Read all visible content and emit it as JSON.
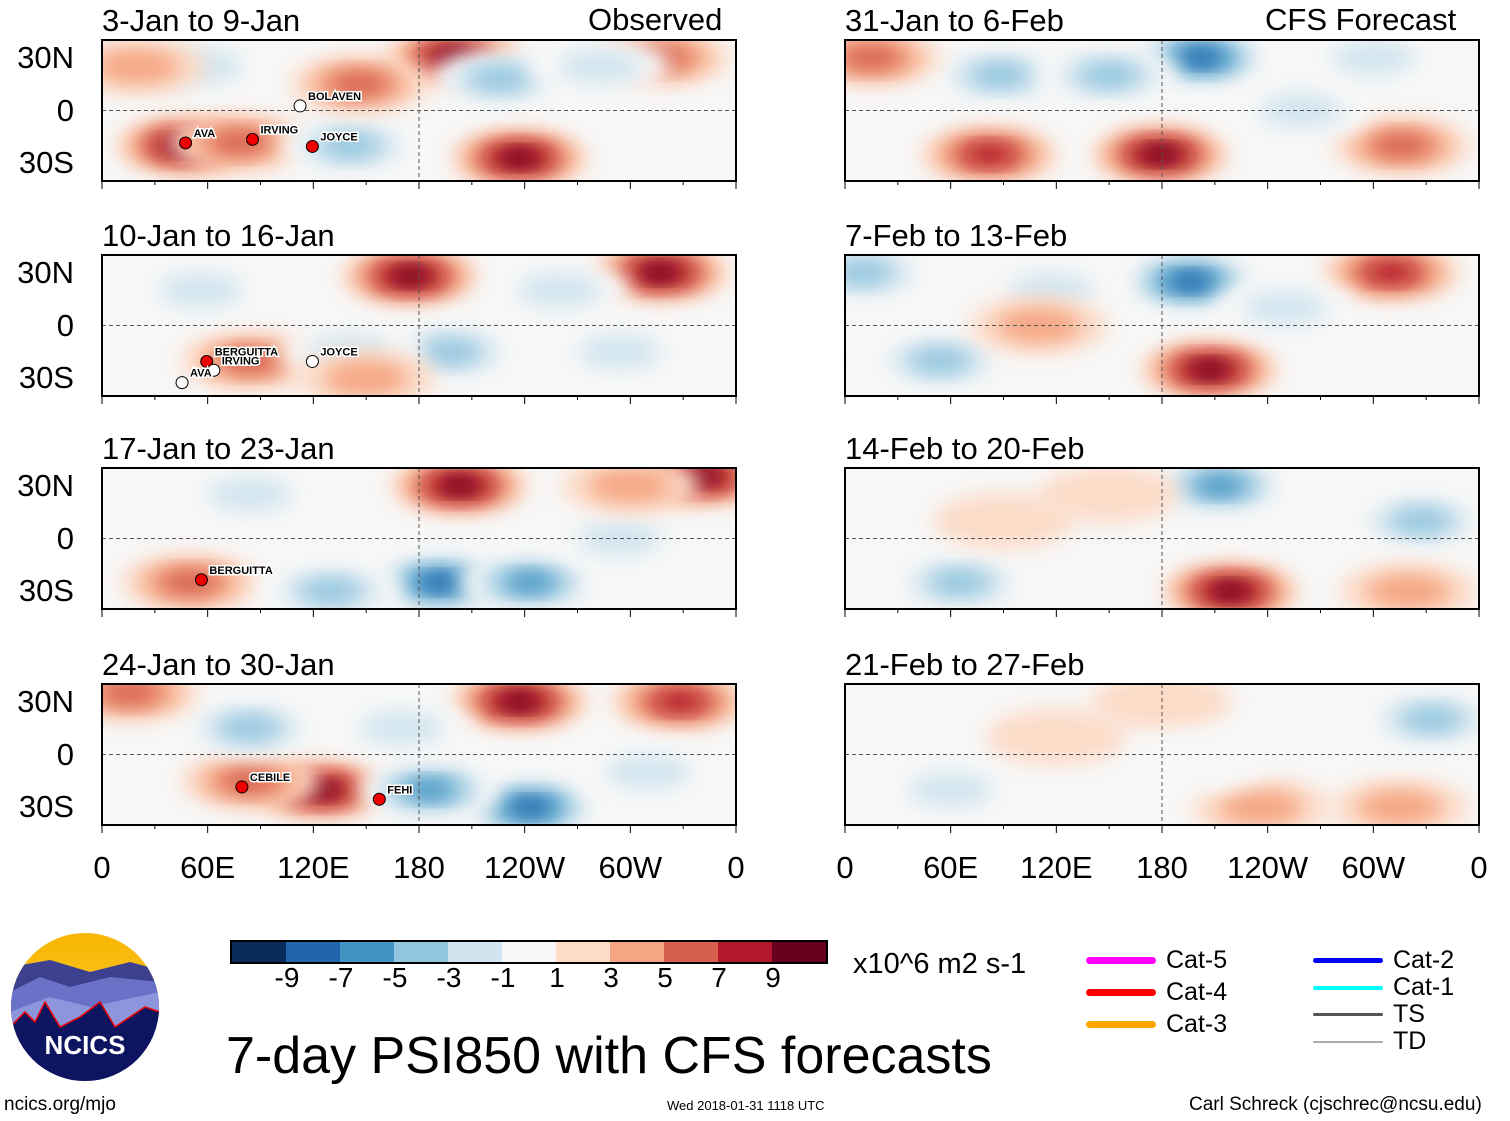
{
  "colorbar": {
    "colors": [
      "#0b2b5c",
      "#2166ac",
      "#4393c3",
      "#92c5de",
      "#d1e5f0",
      "#f7f7f7",
      "#fddbc7",
      "#f4a582",
      "#d6604d",
      "#b2182b",
      "#67001f"
    ],
    "ticks": [
      "-9",
      "-7",
      "-5",
      "-3",
      "-1",
      "1",
      "3",
      "5",
      "7",
      "9"
    ],
    "units": "x10^6 m2 s-1"
  },
  "y_labels": [
    "30N",
    "0",
    "30S"
  ],
  "x_labels": [
    "0",
    "60E",
    "120E",
    "180",
    "120W",
    "60W",
    "0"
  ],
  "column_labels": {
    "left": "Observed",
    "right": "CFS Forecast"
  },
  "panels": [
    {
      "title": "3-Jan to 9-Jan",
      "blobs": [
        [
          200,
          30,
          9
        ],
        [
          317,
          30,
          5
        ],
        [
          47,
          -20,
          9
        ],
        [
          78,
          -18,
          5
        ],
        [
          237,
          -27,
          9
        ],
        [
          226,
          18,
          -5
        ],
        [
          283,
          25,
          -3
        ],
        [
          141,
          -20,
          -5
        ],
        [
          56,
          25,
          -3
        ],
        [
          146,
          15,
          5
        ],
        [
          20,
          25,
          3
        ]
      ],
      "storms": [
        {
          "name": "AVA",
          "lon": 52,
          "lat": -15,
          "cat": "Cat-4"
        },
        {
          "name": "IRVING",
          "lon": 90,
          "lat": -13,
          "cat": "Cat-2"
        },
        {
          "name": "BOLAVEN",
          "lon": 117,
          "lat": 6,
          "cat": "TD"
        },
        {
          "name": "JOYCE",
          "lon": 124,
          "lat": -17,
          "cat": "Cat-4"
        }
      ]
    },
    {
      "title": "10-Jan to 16-Jan",
      "blobs": [
        [
          175,
          28,
          9
        ],
        [
          317,
          30,
          9
        ],
        [
          260,
          20,
          -3
        ],
        [
          198,
          -15,
          -5
        ],
        [
          84,
          -20,
          5
        ],
        [
          141,
          -15,
          -3
        ],
        [
          56,
          20,
          -3
        ],
        [
          294,
          -15,
          -3
        ],
        [
          150,
          -30,
          3
        ]
      ],
      "storms": [
        {
          "name": "BERGUITTA",
          "lon": 64,
          "lat": -17,
          "cat": "Cat-4"
        },
        {
          "name": "IRVING",
          "lon": 68,
          "lat": -22,
          "cat": "TD"
        },
        {
          "name": "AVA",
          "lon": 50,
          "lat": -29,
          "cat": "TD"
        },
        {
          "name": "JOYCE",
          "lon": 124,
          "lat": -17,
          "cat": "TD"
        }
      ]
    },
    {
      "title": "17-Jan to 23-Jan",
      "blobs": [
        [
          203,
          30,
          9
        ],
        [
          340,
          35,
          9
        ],
        [
          192,
          -25,
          -9
        ],
        [
          243,
          -25,
          -7
        ],
        [
          50,
          -25,
          5
        ],
        [
          84,
          25,
          -3
        ],
        [
          294,
          0,
          -3
        ],
        [
          130,
          -30,
          -5
        ],
        [
          300,
          30,
          3
        ]
      ],
      "storms": [
        {
          "name": "BERGUITTA",
          "lon": 61,
          "lat": -20,
          "cat": "Cat-1"
        }
      ]
    },
    {
      "title": "24-Jan to 30-Jan",
      "blobs": [
        [
          237,
          30,
          9
        ],
        [
          328,
          30,
          7
        ],
        [
          124,
          -20,
          9
        ],
        [
          84,
          -15,
          5
        ],
        [
          243,
          -30,
          -9
        ],
        [
          186,
          -20,
          -7
        ],
        [
          84,
          15,
          -5
        ],
        [
          310,
          -10,
          -3
        ],
        [
          16,
          35,
          5
        ],
        [
          170,
          15,
          -3
        ]
      ],
      "storms": [
        {
          "name": "CEBILE",
          "lon": 84,
          "lat": -15,
          "cat": "Cat-4"
        },
        {
          "name": "FEHI",
          "lon": 162,
          "lat": -22,
          "cat": "Cat-4"
        }
      ]
    },
    {
      "title": "31-Jan to 6-Feb",
      "blobs": [
        [
          202,
          30,
          -9
        ],
        [
          88,
          20,
          -5
        ],
        [
          179,
          -25,
          9
        ],
        [
          82,
          -25,
          7
        ],
        [
          316,
          -20,
          5
        ],
        [
          15,
          30,
          5
        ],
        [
          259,
          0,
          -3
        ],
        [
          300,
          30,
          -3
        ],
        [
          150,
          20,
          -5
        ]
      ],
      "storms": []
    },
    {
      "title": "7-Feb to 13-Feb",
      "blobs": [
        [
          196,
          25,
          -9
        ],
        [
          310,
          30,
          7
        ],
        [
          207,
          -25,
          9
        ],
        [
          54,
          -20,
          -5
        ],
        [
          117,
          20,
          -3
        ],
        [
          10,
          30,
          -5
        ],
        [
          250,
          10,
          -3
        ],
        [
          110,
          0,
          3
        ]
      ],
      "storms": []
    },
    {
      "title": "14-Feb to 20-Feb",
      "blobs": [
        [
          213,
          30,
          -7
        ],
        [
          327,
          10,
          -5
        ],
        [
          219,
          -30,
          9
        ],
        [
          65,
          -25,
          -5
        ],
        [
          90,
          10,
          1
        ],
        [
          150,
          25,
          1
        ],
        [
          320,
          -30,
          3
        ]
      ],
      "storms": []
    },
    {
      "title": "21-Feb to 27-Feb",
      "blobs": [
        [
          333,
          20,
          -5
        ],
        [
          236,
          -30,
          3
        ],
        [
          315,
          -30,
          3
        ],
        [
          60,
          -20,
          -3
        ],
        [
          120,
          10,
          1
        ],
        [
          180,
          30,
          1
        ],
        [
          200,
          -5,
          -1
        ]
      ],
      "storms": []
    }
  ],
  "storm_legend": [
    {
      "label": "Cat-5",
      "color": "#ff00ff",
      "width": 7
    },
    {
      "label": "Cat-4",
      "color": "#ff0000",
      "width": 7
    },
    {
      "label": "Cat-3",
      "color": "#ffa500",
      "width": 7
    },
    {
      "label": "Cat-2",
      "color": "#0000ff",
      "width": 5
    },
    {
      "label": "Cat-1",
      "color": "#00ffff",
      "width": 4
    },
    {
      "label": "TS",
      "color": "#555555",
      "width": 3
    },
    {
      "label": "TD",
      "color": "#aaaaaa",
      "width": 2
    }
  ],
  "title": "7-day PSI850 with CFS forecasts",
  "logo_text": "NCICS",
  "footer": {
    "left": "ncics.org/mjo",
    "center": "Wed 2018-01-31 1118 UTC",
    "right": "Carl Schreck (cjschrec@ncsu.edu)"
  }
}
